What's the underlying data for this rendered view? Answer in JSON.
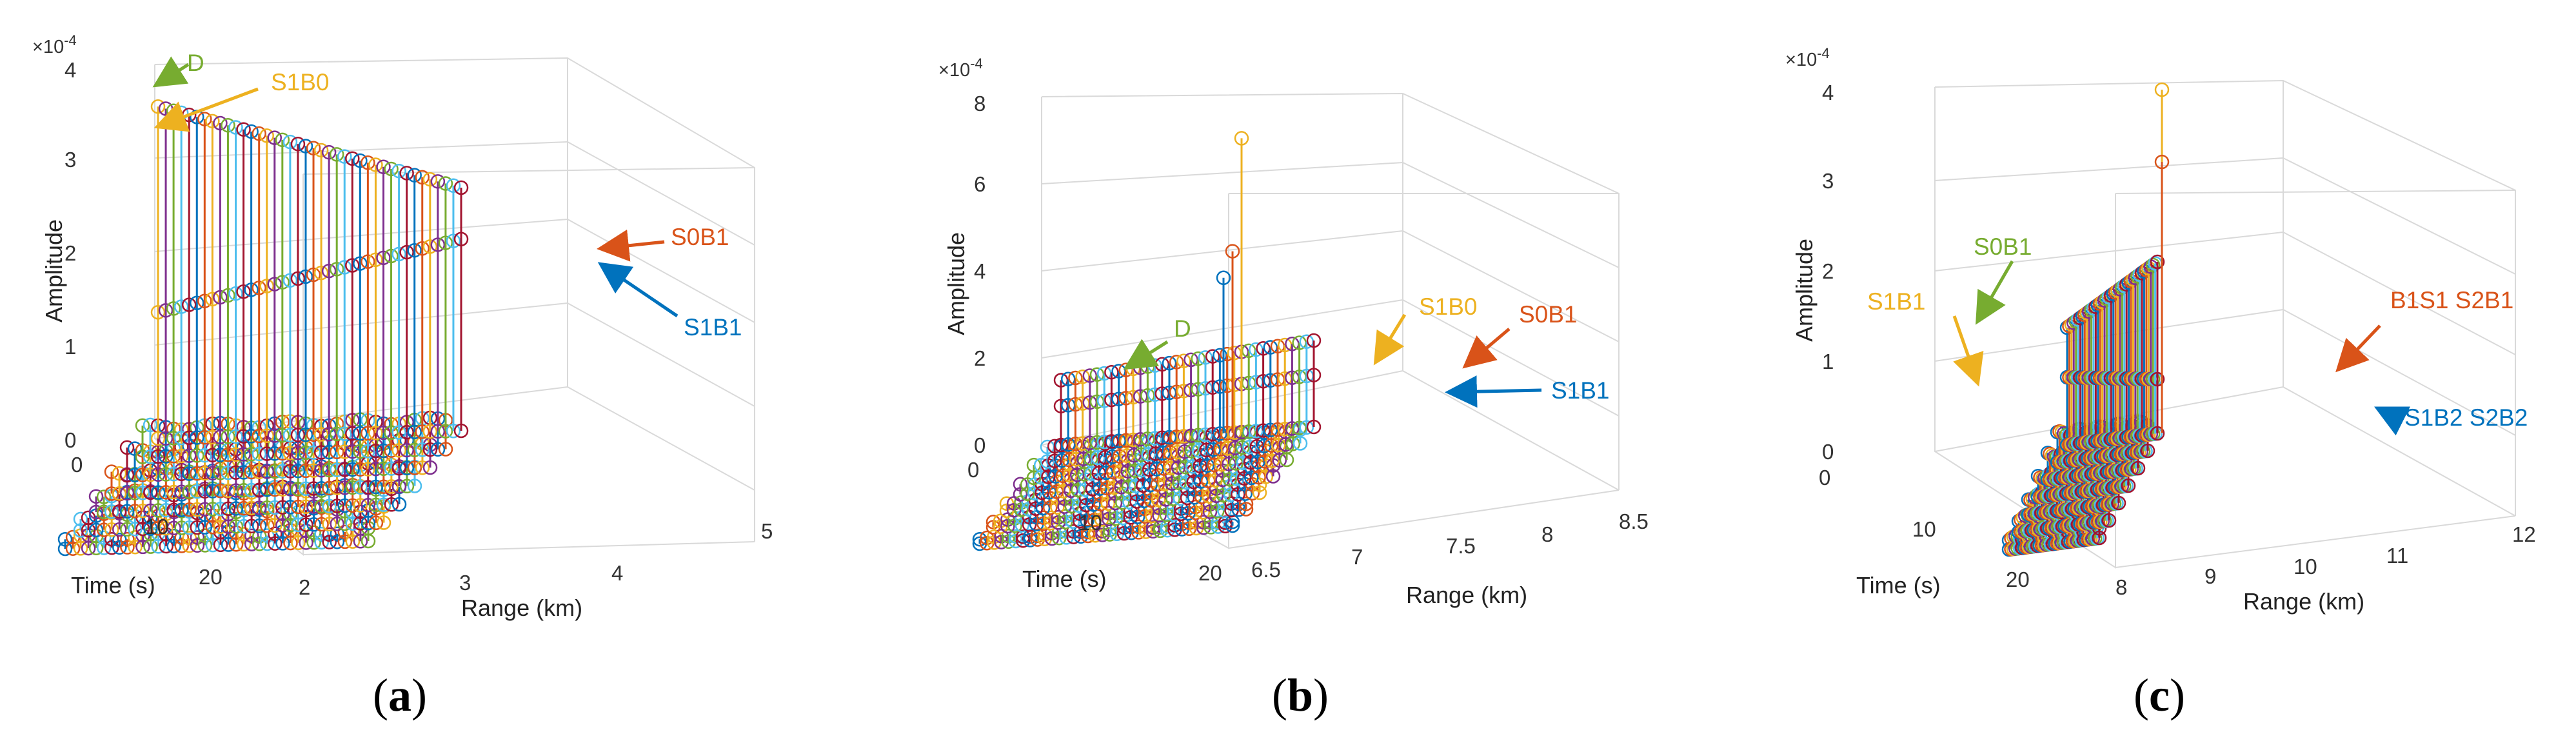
{
  "figure": {
    "panels": [
      "a",
      "b",
      "c"
    ]
  },
  "series_colors": [
    "#0072BD",
    "#D95319",
    "#EDB120",
    "#7E2F8E",
    "#77AC30",
    "#4DBEEE",
    "#A2142F"
  ],
  "chart_data": [
    {
      "type": "stem3",
      "panel_label": "a",
      "zlabel": "Amplitude",
      "xlabel": "Range (km)",
      "ylabel": "Time (s)",
      "z_exponent": "×10",
      "z_exponent_power": "-4",
      "zlim": [
        0,
        4
      ],
      "zticks": [
        "0",
        "1",
        "2",
        "3",
        "4"
      ],
      "xlim": [
        2,
        5
      ],
      "xticks": [
        "2",
        "3",
        "4",
        "5"
      ],
      "ylim": [
        0,
        20
      ],
      "yticks": [
        "0",
        "10",
        "20"
      ],
      "ridges": [
        {
          "name": "S1B0",
          "time_s": 0,
          "range_start_km": 2.0,
          "range_end_km": 4.0,
          "amp_start": 3.55,
          "amp_end": 2.6
        },
        {
          "name": "S1B1",
          "time_s": 0,
          "range_start_km": 2.0,
          "range_end_km": 4.0,
          "amp_start": 1.35,
          "amp_end": 2.05
        }
      ],
      "annotations": [
        {
          "text": "D",
          "color": "#77AC30"
        },
        {
          "text": "S1B0",
          "color": "#EDB120"
        },
        {
          "text": "S0B1",
          "color": "#D95319"
        },
        {
          "text": "S1B1",
          "color": "#0072BD"
        }
      ]
    },
    {
      "type": "stem3",
      "panel_label": "b",
      "zlabel": "Amplitude",
      "xlabel": "Range (km)",
      "ylabel": "Time (s)",
      "z_exponent": "×10",
      "z_exponent_power": "-4",
      "zlim": [
        0,
        8
      ],
      "zticks": [
        "0",
        "2",
        "4",
        "6",
        "8"
      ],
      "xlim": [
        6.5,
        8.5
      ],
      "xticks": [
        "6.5",
        "7",
        "7.5",
        "8",
        "8.5"
      ],
      "ylim": [
        0,
        20
      ],
      "yticks": [
        "0",
        "10",
        "20"
      ],
      "ridges": [
        {
          "name": "S1B0",
          "time_s": 0,
          "range_start_km": 6.5,
          "range_end_km": 7.9,
          "amp_start": 1.5,
          "amp_end": 2.0
        },
        {
          "name": "S1B1",
          "time_s": 0,
          "range_start_km": 6.5,
          "range_end_km": 7.9,
          "amp_start": 0.9,
          "amp_end": 1.2
        }
      ],
      "peaks": [
        {
          "range_km": 7.5,
          "amplitude": 6.8
        },
        {
          "range_km": 7.45,
          "amplitude": 4.2
        },
        {
          "range_km": 7.4,
          "amplitude": 3.6
        }
      ],
      "annotations": [
        {
          "text": "D",
          "color": "#77AC30"
        },
        {
          "text": "S1B0",
          "color": "#EDB120"
        },
        {
          "text": "S0B1",
          "color": "#D95319"
        },
        {
          "text": "S1B1",
          "color": "#0072BD"
        }
      ]
    },
    {
      "type": "stem3",
      "panel_label": "c",
      "zlabel": "Amplitude",
      "xlabel": "Range (km)",
      "ylabel": "Time (s)",
      "z_exponent": "×10",
      "z_exponent_power": "-4",
      "zlim": [
        0,
        4
      ],
      "zticks": [
        "0",
        "1",
        "2",
        "3",
        "4"
      ],
      "xlim": [
        8,
        12
      ],
      "xticks": [
        "8",
        "9",
        "10",
        "11",
        "12"
      ],
      "ylim": [
        0,
        20
      ],
      "yticks": [
        "0",
        "10",
        "20"
      ],
      "ridges": [
        {
          "name": "S0B1",
          "time_s": 0,
          "range_start_km": 8.0,
          "range_end_km": 9.0,
          "amp_start": 1.3,
          "amp_end": 1.9
        },
        {
          "name": "S1B1",
          "time_s": 0,
          "range_start_km": 8.0,
          "range_end_km": 9.0,
          "amp_start": 0.75,
          "amp_end": 0.6
        }
      ],
      "peaks": [
        {
          "range_km": 9.05,
          "amplitude": 3.8
        },
        {
          "range_km": 9.05,
          "amplitude": 3.0
        }
      ],
      "annotations": [
        {
          "text": "S0B1",
          "color": "#77AC30"
        },
        {
          "text": "S1B1",
          "color": "#EDB120"
        },
        {
          "text": "B1S1 S2B1",
          "color": "#D95319"
        },
        {
          "text": "S1B2 S2B2",
          "color": "#0072BD"
        }
      ]
    }
  ]
}
